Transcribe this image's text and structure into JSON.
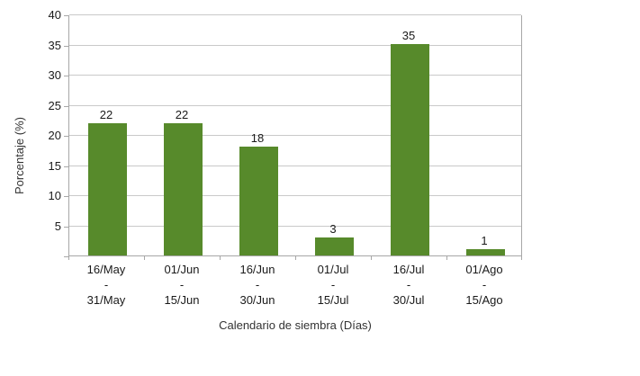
{
  "chart_data": {
    "type": "bar",
    "title": "",
    "xlabel": "Calendario de siembra (Días)",
    "ylabel": "Porcentaje (%)",
    "categories": [
      {
        "from": "16/May",
        "to": "31/May"
      },
      {
        "from": "01/Jun",
        "to": "15/Jun"
      },
      {
        "from": "16/Jun",
        "to": "30/Jun"
      },
      {
        "from": "01/Jul",
        "to": "15/Jul"
      },
      {
        "from": "16/Jul",
        "to": "30/Jul"
      },
      {
        "from": "01/Ago",
        "to": "15/Ago"
      }
    ],
    "category_separator": "-",
    "values": [
      22,
      22,
      18,
      3,
      35,
      1
    ],
    "data_labels": [
      "22",
      "22",
      "18",
      "3",
      "35",
      "1"
    ],
    "ylim": [
      0,
      40
    ],
    "yticks": [
      5,
      10,
      15,
      20,
      25,
      30,
      35,
      40
    ],
    "grid": true,
    "legend_position": "none",
    "colors": {
      "bar": "#578a2b",
      "gridline": "#c9c9c9",
      "axis": "#a7a7a7",
      "text": "#1a1a1a",
      "background": "#ffffff"
    }
  }
}
